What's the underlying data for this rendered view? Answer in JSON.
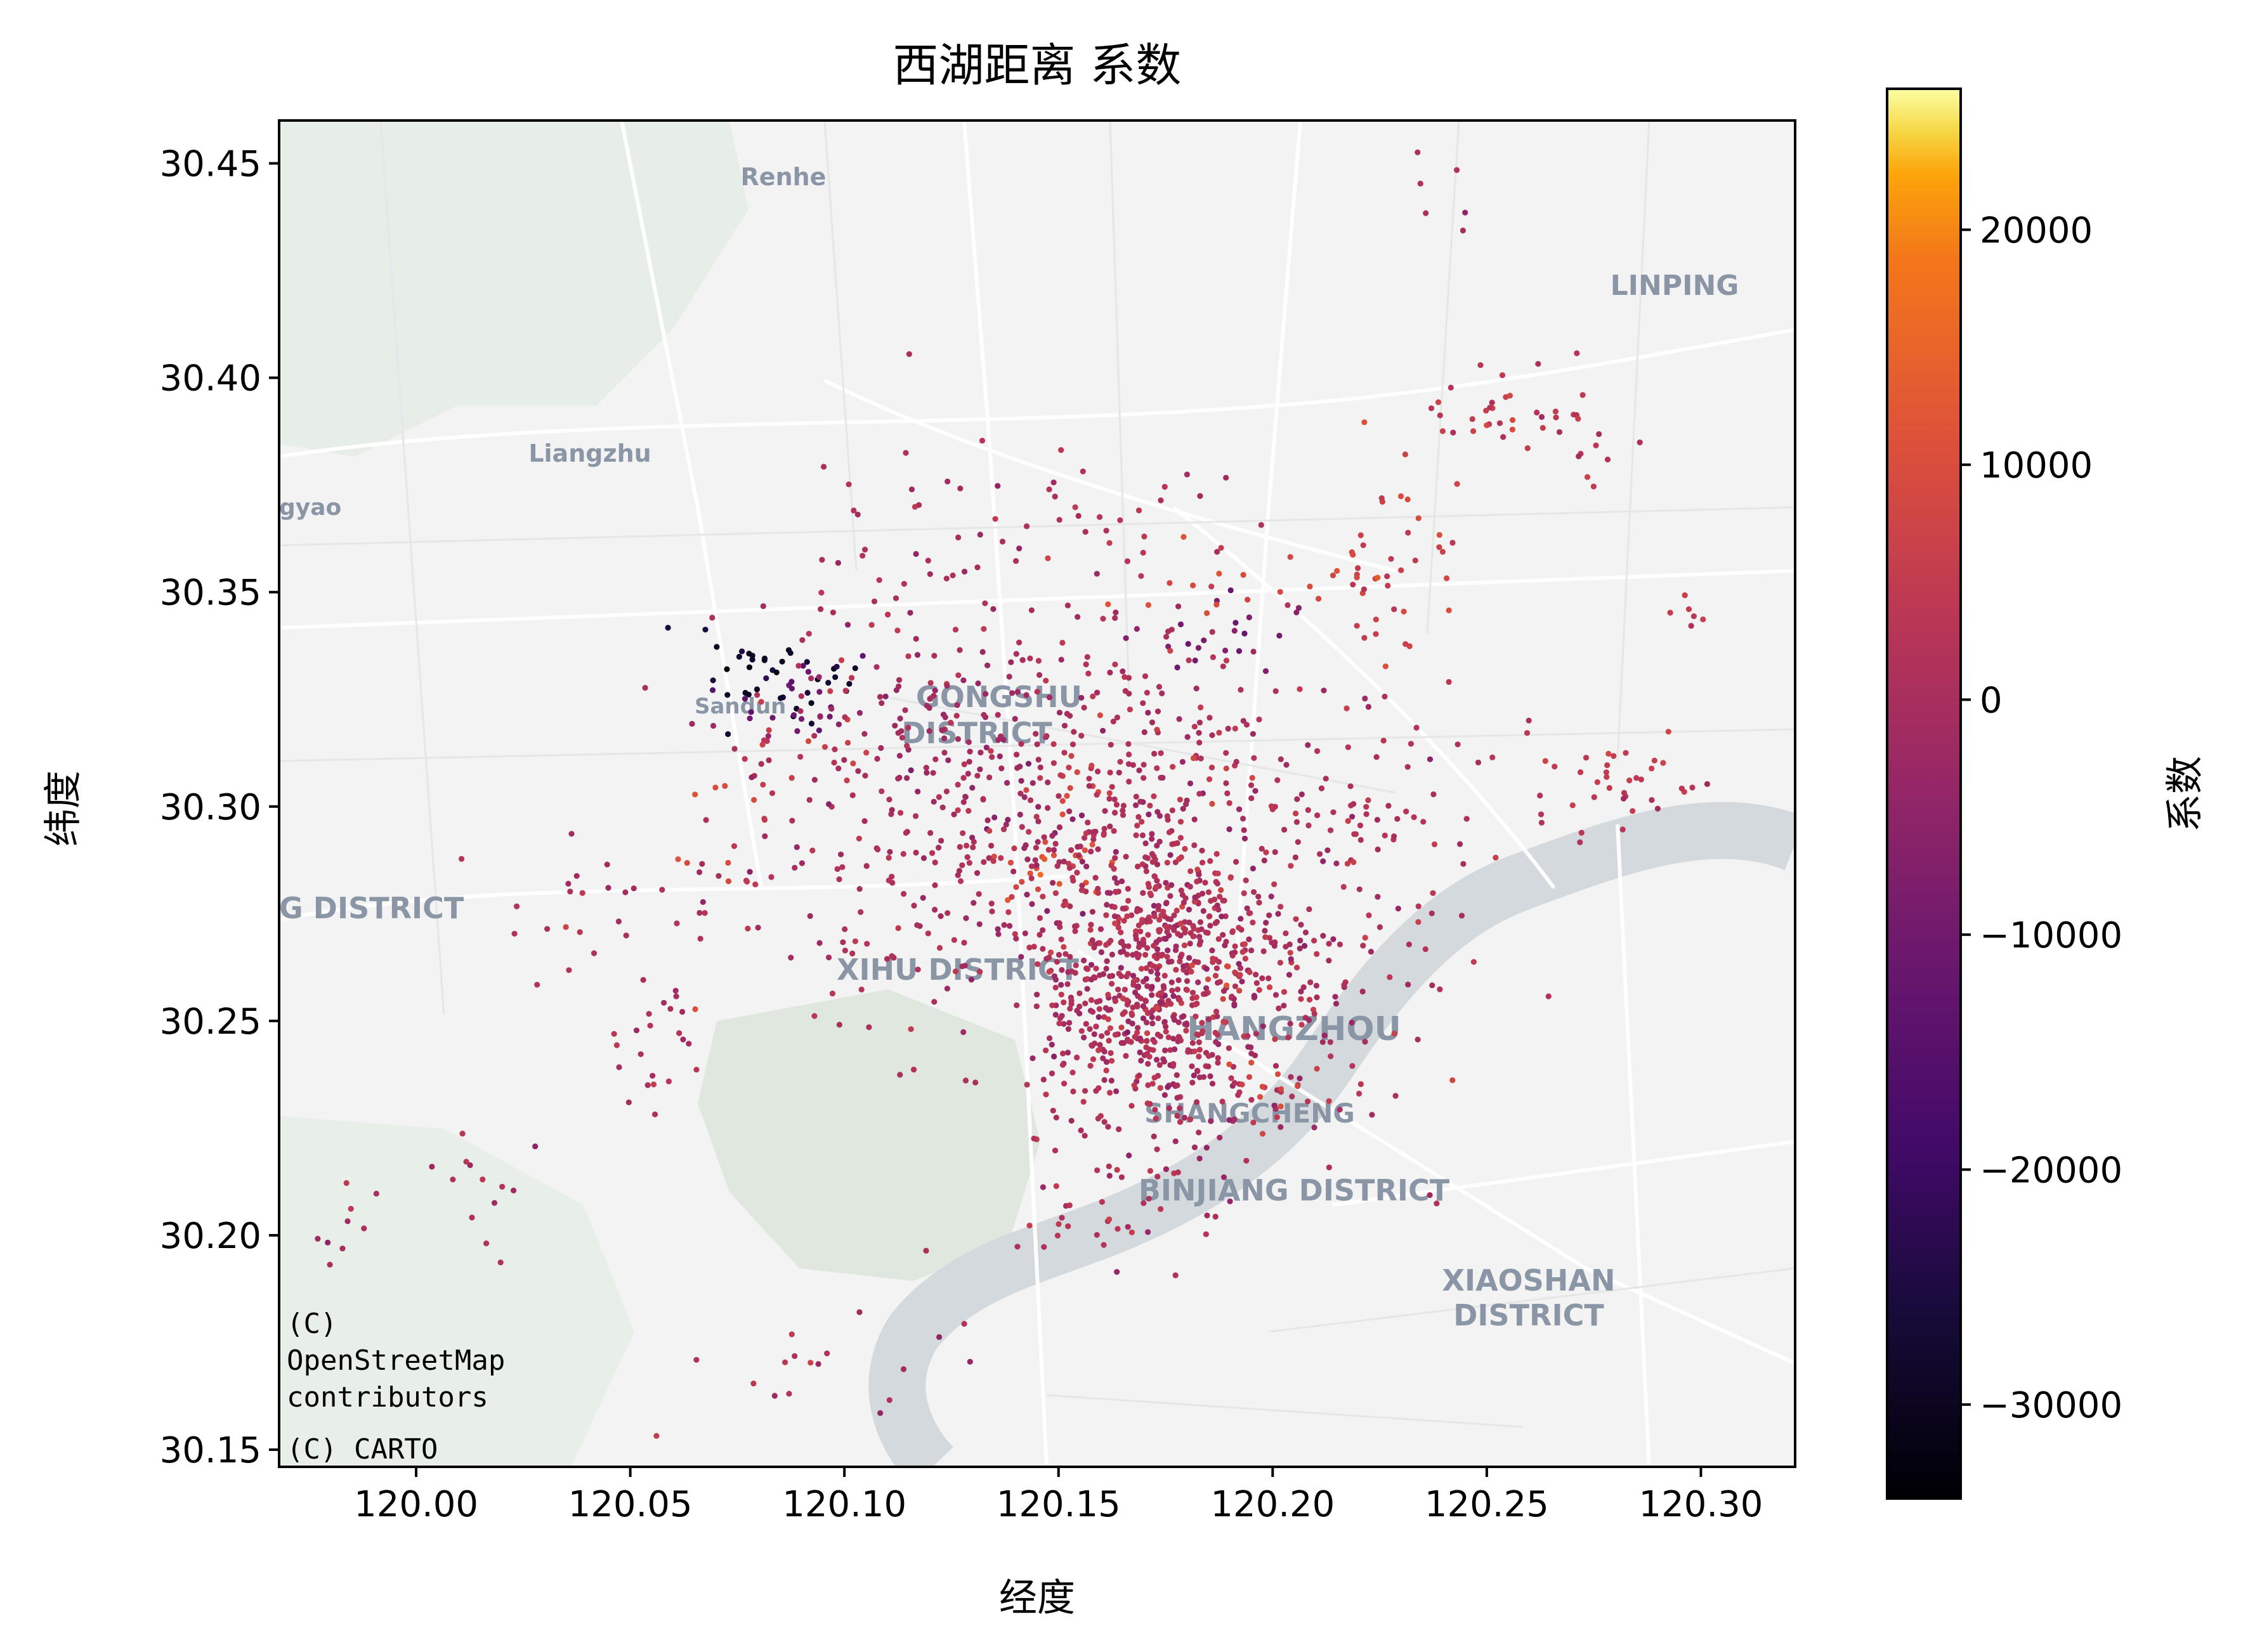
{
  "chart_data": {
    "type": "scatter",
    "title": "西湖距离 系数",
    "xlabel": "经度",
    "ylabel": "纬度",
    "xlim": [
      119.968,
      120.322
    ],
    "ylim": [
      30.146,
      30.46
    ],
    "xticks": [
      120.0,
      120.05,
      120.1,
      120.15,
      120.2,
      120.25,
      120.3
    ],
    "xtick_labels": [
      "120.00",
      "120.05",
      "120.10",
      "120.15",
      "120.20",
      "120.25",
      "120.30"
    ],
    "yticks": [
      30.15,
      30.2,
      30.25,
      30.3,
      30.35,
      30.4,
      30.45
    ],
    "ytick_labels": [
      "30.15",
      "30.20",
      "30.25",
      "30.30",
      "30.35",
      "30.40",
      "30.45"
    ],
    "grid": false,
    "colorbar": {
      "label": "系数",
      "colormap": "inferno",
      "range": [
        -34000,
        26000
      ],
      "ticks": [
        -30000,
        -20000,
        -10000,
        0,
        10000,
        20000
      ],
      "tick_labels": [
        "−30000",
        "−20000",
        "−10000",
        "0",
        "10000",
        "20000"
      ]
    },
    "basemap": {
      "attribution": [
        "(C)",
        "OpenStreetMap",
        "contributors",
        "(C) CARTO"
      ],
      "place_labels": [
        "Renhe",
        "LINPING",
        "Liangzhu",
        "gyao",
        "GONGSHU",
        "DISTRICT",
        "G DISTRICT",
        "XIHU DISTRICT",
        "HANGZHOU",
        "SHANGCHENG",
        "BINJIANG DISTRICT",
        "XIAOSHAN",
        "DISTRICT",
        "Sandun"
      ]
    },
    "clusters": [
      {
        "center": [
          120.083,
          30.33
        ],
        "spread": [
          0.01,
          0.006
        ],
        "count": 40,
        "value": -28000
      },
      {
        "center": [
          120.088,
          30.325
        ],
        "spread": [
          0.008,
          0.006
        ],
        "count": 18,
        "value": -12000
      },
      {
        "center": [
          120.092,
          30.315
        ],
        "spread": [
          0.01,
          0.006
        ],
        "count": 15,
        "value": 6000
      },
      {
        "center": [
          120.19,
          30.34
        ],
        "spread": [
          0.01,
          0.006
        ],
        "count": 20,
        "value": -9000
      },
      {
        "center": [
          120.188,
          30.35
        ],
        "spread": [
          0.01,
          0.004
        ],
        "count": 12,
        "value": 9000
      },
      {
        "center": [
          120.23,
          30.355
        ],
        "spread": [
          0.01,
          0.012
        ],
        "count": 45,
        "value": 6500
      },
      {
        "center": [
          120.255,
          30.392
        ],
        "spread": [
          0.014,
          0.007
        ],
        "count": 45,
        "value": 4500
      },
      {
        "center": [
          120.282,
          30.305
        ],
        "spread": [
          0.012,
          0.006
        ],
        "count": 35,
        "value": 5000
      },
      {
        "center": [
          120.293,
          30.345
        ],
        "spread": [
          0.004,
          0.004
        ],
        "count": 6,
        "value": 5000
      },
      {
        "center": [
          120.15,
          30.287
        ],
        "spread": [
          0.007,
          0.006
        ],
        "count": 25,
        "value": 10000
      },
      {
        "center": [
          120.157,
          30.306
        ],
        "spread": [
          0.005,
          0.003
        ],
        "count": 10,
        "value": 9000
      },
      {
        "center": [
          120.14,
          30.3
        ],
        "spread": [
          0.032,
          0.026
        ],
        "count": 520,
        "value": 0
      },
      {
        "center": [
          120.17,
          30.258
        ],
        "spread": [
          0.013,
          0.022
        ],
        "count": 650,
        "value": 1000
      },
      {
        "center": [
          120.195,
          30.265
        ],
        "spread": [
          0.022,
          0.022
        ],
        "count": 260,
        "value": 1500
      },
      {
        "center": [
          120.199,
          30.235
        ],
        "spread": [
          0.005,
          0.004
        ],
        "count": 15,
        "value": 8000
      },
      {
        "center": [
          120.187,
          30.26
        ],
        "spread": [
          0.006,
          0.006
        ],
        "count": 15,
        "value": 7000
      },
      {
        "center": [
          120.226,
          30.3
        ],
        "spread": [
          0.018,
          0.012
        ],
        "count": 55,
        "value": 1500
      },
      {
        "center": [
          120.165,
          30.37
        ],
        "spread": [
          0.018,
          0.007
        ],
        "count": 28,
        "value": 1000
      },
      {
        "center": [
          120.113,
          30.345
        ],
        "spread": [
          0.014,
          0.022
        ],
        "count": 45,
        "value": 0
      },
      {
        "center": [
          120.17,
          30.328
        ],
        "spread": [
          0.012,
          0.01
        ],
        "count": 30,
        "value": 3000
      },
      {
        "center": [
          120.055,
          30.243
        ],
        "spread": [
          0.007,
          0.007
        ],
        "count": 20,
        "value": 1000
      },
      {
        "center": [
          120.045,
          30.275
        ],
        "spread": [
          0.016,
          0.01
        ],
        "count": 28,
        "value": 1000
      },
      {
        "center": [
          120.005,
          30.208
        ],
        "spread": [
          0.022,
          0.009
        ],
        "count": 22,
        "value": 1000
      },
      {
        "center": [
          120.095,
          30.168
        ],
        "spread": [
          0.02,
          0.008
        ],
        "count": 18,
        "value": 1000
      },
      {
        "center": [
          120.155,
          30.203
        ],
        "spread": [
          0.013,
          0.004
        ],
        "count": 20,
        "value": 1000
      },
      {
        "center": [
          120.238,
          30.44
        ],
        "spread": [
          0.007,
          0.005
        ],
        "count": 6,
        "value": 1000
      },
      {
        "center": [
          120.07,
          30.3
        ],
        "spread": [
          0.008,
          0.01
        ],
        "count": 12,
        "value": 8000
      }
    ]
  }
}
